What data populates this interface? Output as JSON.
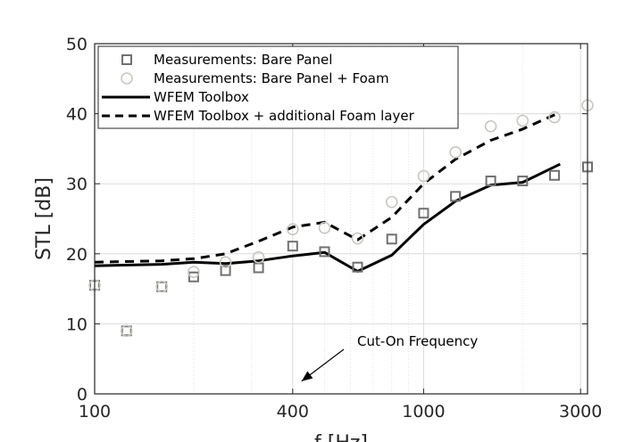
{
  "chart_data": {
    "type": "line",
    "xscale": "log",
    "xlabel": "f [Hz]",
    "ylabel": "STL [dB]",
    "xlim": [
      100,
      3150
    ],
    "ylim": [
      0,
      50
    ],
    "xticks": [
      100,
      400,
      1000,
      3000
    ],
    "xtick_labels": [
      "100",
      "400",
      "1000",
      "3000"
    ],
    "yticks": [
      0,
      10,
      20,
      30,
      40,
      50
    ],
    "ytick_labels": [
      "0",
      "10",
      "20",
      "30",
      "40",
      "50"
    ],
    "grid": true,
    "legend_position": "top-left",
    "series": [
      {
        "name": "Measurements: Bare Panel",
        "kind": "marker-square",
        "color": "#707070",
        "x": [
          100,
          125,
          160,
          200,
          250,
          315,
          400,
          500,
          630,
          800,
          1000,
          1250,
          1600,
          2000,
          2500,
          3150
        ],
        "y": [
          15.5,
          9.0,
          15.3,
          16.7,
          17.6,
          18.0,
          21.1,
          20.3,
          18.1,
          22.1,
          25.8,
          28.2,
          30.4,
          30.4,
          31.2,
          32.4
        ]
      },
      {
        "name": "Measurements: Bare Panel + Foam",
        "kind": "marker-circle",
        "color": "#c8c8c0",
        "x": [
          100,
          125,
          160,
          200,
          250,
          315,
          400,
          500,
          630,
          800,
          1000,
          1250,
          1600,
          2000,
          2500,
          3150
        ],
        "y": [
          15.5,
          9.0,
          15.3,
          17.4,
          18.8,
          19.5,
          23.5,
          23.7,
          22.2,
          27.4,
          31.1,
          34.5,
          38.2,
          39.0,
          39.5,
          41.2
        ]
      },
      {
        "name": "WFEM Toolbox",
        "kind": "line-solid",
        "color": "#000000",
        "x": [
          100,
          160,
          200,
          250,
          315,
          400,
          500,
          630,
          800,
          1000,
          1250,
          1600,
          2000,
          2600
        ],
        "y": [
          18.3,
          18.5,
          18.8,
          18.6,
          19.0,
          19.7,
          20.2,
          17.5,
          19.8,
          24.2,
          27.5,
          29.8,
          30.2,
          32.8
        ]
      },
      {
        "name": "WFEM Toolbox + additional Foam layer",
        "kind": "line-dashed",
        "color": "#000000",
        "x": [
          100,
          160,
          200,
          250,
          315,
          400,
          500,
          630,
          800,
          1000,
          1250,
          1600,
          2000,
          2600
        ],
        "y": [
          18.8,
          19.0,
          19.3,
          20.0,
          21.8,
          23.8,
          24.5,
          22.0,
          25.2,
          30.0,
          33.5,
          36.2,
          37.8,
          40.2
        ]
      }
    ],
    "annotations": [
      {
        "text": "Cut-On Frequency",
        "x": 400,
        "y": 1.3,
        "arrow": true
      }
    ]
  }
}
